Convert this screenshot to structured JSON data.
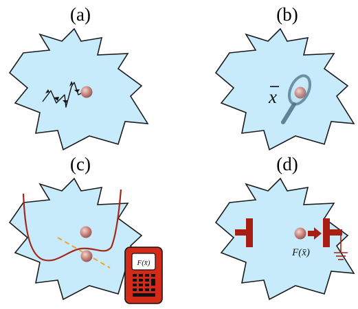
{
  "panels": {
    "a": {
      "label": "(a)"
    },
    "b": {
      "label": "(b)",
      "x_label": "x"
    },
    "c": {
      "label": "(c)",
      "calculator_text": "F(x̄)"
    },
    "d": {
      "label": "(d)",
      "force_text": "F(x̄)"
    }
  },
  "colors": {
    "region_fill": "#c7ebfb",
    "region_stroke": "#1a1a1a",
    "particle": "#c27b74",
    "particle_highlight": "#f3d4cf",
    "potential_curve": "#a3271b",
    "tangent_line": "#f0a02e",
    "calculator_body": "#d42a1a",
    "electrode": "#a81e12",
    "magnifier": "#6b8fa6"
  }
}
